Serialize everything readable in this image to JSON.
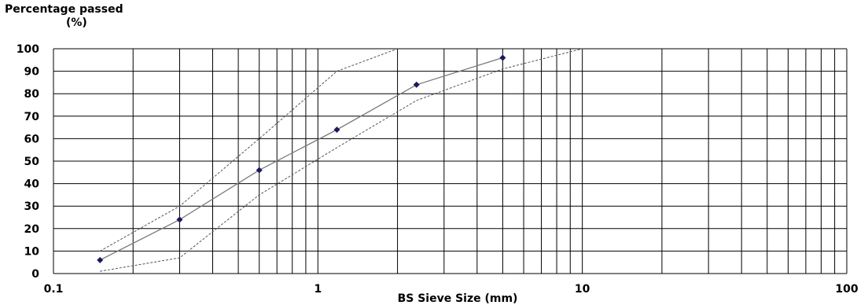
{
  "chart_data": {
    "type": "line",
    "ylabel": [
      "Percentage passed",
      "(%)"
    ],
    "xlabel": "BS Sieve Size (mm)",
    "x_scale": "log",
    "xlim": [
      0.1,
      100
    ],
    "ylim": [
      0,
      100
    ],
    "x_tick_labels": [
      "0.1",
      "1",
      "10",
      "100"
    ],
    "y_tick_labels": [
      "0",
      "10",
      "20",
      "30",
      "40",
      "50",
      "60",
      "70",
      "80",
      "90",
      "100"
    ],
    "grid": true,
    "series": [
      {
        "name": "",
        "style": "solid-markers",
        "x": [
          0.15,
          0.3,
          0.6,
          1.18,
          2.36,
          5.0
        ],
        "y": [
          6,
          24,
          46,
          64,
          84,
          96
        ]
      },
      {
        "name": "",
        "style": "dashed",
        "x": [
          0.15,
          0.3,
          0.6,
          1.18,
          2.0
        ],
        "y": [
          10,
          30,
          60,
          90,
          100
        ]
      },
      {
        "name": "",
        "style": "dashed",
        "x": [
          0.15,
          0.3,
          0.6,
          1.18,
          2.36,
          5.0,
          10.0
        ],
        "y": [
          1,
          7,
          35,
          56,
          77,
          91,
          100
        ]
      }
    ],
    "colors": {
      "line": "#7a7a7a",
      "marker": "#1a1a5e",
      "grid": "#000000"
    }
  }
}
